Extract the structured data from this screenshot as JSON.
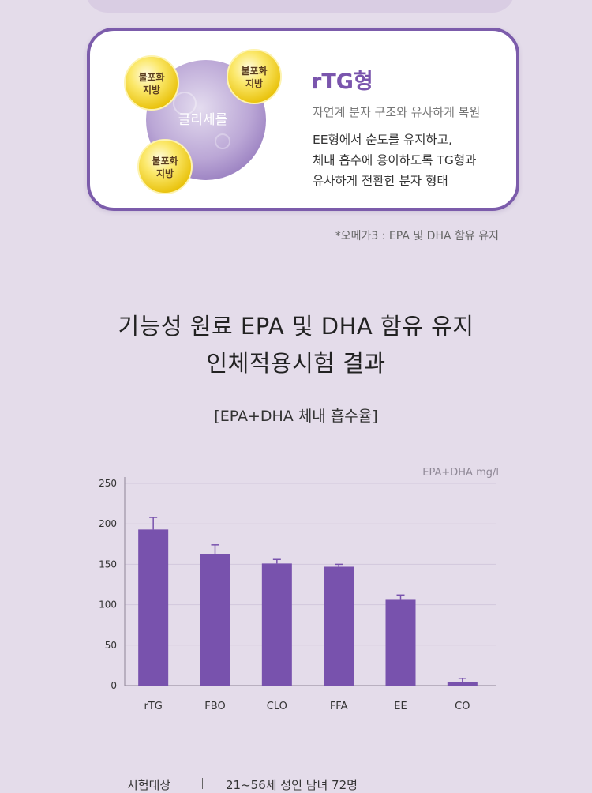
{
  "card": {
    "bubble_label": "불포화\n지방",
    "bubble_line1": "불포화",
    "bubble_line2": "지방",
    "center_label": "글리세롤",
    "title": "rTG형",
    "subtitle": "자연계 분자 구조와 유사하게 복원",
    "desc_lines": [
      "EE형에서 순도를 유지하고,",
      "체내 흡수에 용이하도록 TG형과",
      "유사하게 전환한 분자 형태"
    ]
  },
  "footnote": "*오메가3 : EPA 및 DHA 함유 유지",
  "headline": {
    "line1": "기능성 원료 EPA 및 DHA 함유 유지",
    "line2": "인체적용시험 결과"
  },
  "subhead": "[EPA+DHA 체내 흡수율]",
  "chart_data": {
    "type": "bar",
    "title": "[EPA+DHA 체내 흡수율]",
    "unit_label": "EPA+DHA mg/l",
    "categories": [
      "rTG",
      "FBO",
      "CLO",
      "FFA",
      "EE",
      "CO"
    ],
    "values": [
      193,
      163,
      151,
      147,
      106,
      4
    ],
    "error_upper": [
      208,
      174,
      156,
      150,
      112,
      9
    ],
    "yticks": [
      0,
      50,
      100,
      150,
      200,
      250
    ],
    "ylim": [
      0,
      250
    ],
    "grid": true,
    "colors": {
      "bar": "#7852ad",
      "error": "#7852ad",
      "grid": "#d2c8dc",
      "axis": "#8e8496"
    }
  },
  "info": {
    "label": "시험대상",
    "value": "21~56세 성인 남녀 72명"
  }
}
